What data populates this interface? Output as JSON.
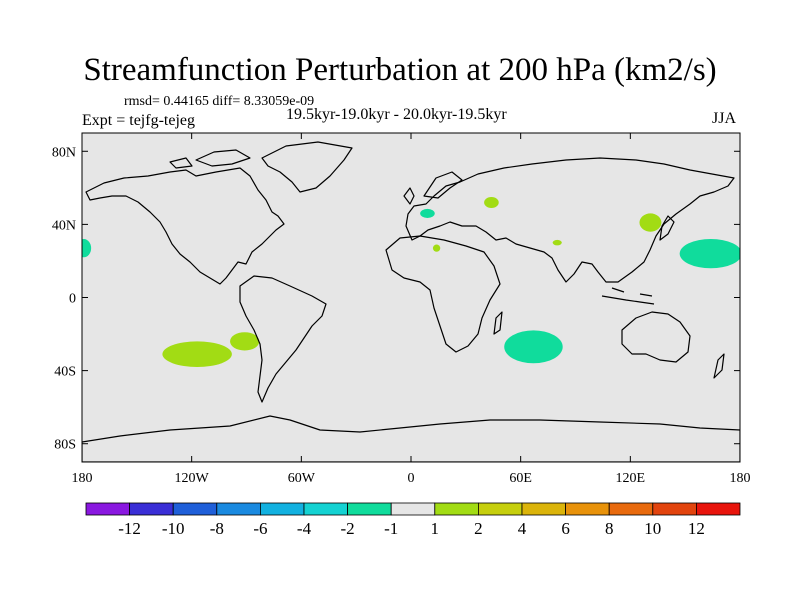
{
  "chart_data": {
    "type": "heatmap",
    "title": "Streamfunction Perturbation at 200 hPa (km2/s)",
    "stats_text": "rmsd= 0.44165 diff= 8.33059e-09",
    "subtitle": "19.5kyr-19.0kyr - 20.0kyr-19.5kyr",
    "left_label": "Expt = tejfg-tejeg",
    "right_label": "JJA",
    "projection": "cylindrical-equidistant",
    "xlim": [
      -180,
      180
    ],
    "ylim": [
      -90,
      90
    ],
    "x_ticks": [
      {
        "value": -180,
        "label": "180"
      },
      {
        "value": -120,
        "label": "120W"
      },
      {
        "value": -60,
        "label": "60W"
      },
      {
        "value": 0,
        "label": "0"
      },
      {
        "value": 60,
        "label": "60E"
      },
      {
        "value": 120,
        "label": "120E"
      },
      {
        "value": 180,
        "label": "180"
      }
    ],
    "y_ticks": [
      {
        "value": 80,
        "label": "80N"
      },
      {
        "value": 40,
        "label": "40N"
      },
      {
        "value": 0,
        "label": "0"
      },
      {
        "value": -40,
        "label": "40S"
      },
      {
        "value": -80,
        "label": "80S"
      }
    ],
    "background_color": "#e6e6e6",
    "colorbar": {
      "colors": [
        "#8a18e0",
        "#3a2ed6",
        "#1f5fd9",
        "#1a8ae0",
        "#12b1e0",
        "#14d2d2",
        "#10dc9c",
        "#e6e6e6",
        "#a2dc14",
        "#c6cf0e",
        "#dbb40a",
        "#e8920a",
        "#e86a0e",
        "#e2440e",
        "#e8140c"
      ],
      "labels": [
        "-12",
        "-10",
        "-8",
        "-6",
        "-4",
        "-2",
        "-1",
        "1",
        "2",
        "4",
        "6",
        "8",
        "10",
        "12"
      ]
    },
    "anomaly_regions": [
      {
        "name": "east-pacific-dateline",
        "lon": -179,
        "lat": 27,
        "rlon": 4,
        "rlat": 5,
        "level": "-2",
        "color": "#10dc9c"
      },
      {
        "name": "south-pacific-west",
        "lon": -117,
        "lat": -31,
        "rlon": 19,
        "rlat": 7,
        "level": "2",
        "color": "#a2dc14"
      },
      {
        "name": "south-pacific-east",
        "lon": -91,
        "lat": -24,
        "rlon": 8,
        "rlat": 5,
        "level": "2",
        "color": "#a2dc14"
      },
      {
        "name": "europe",
        "lon": 9,
        "lat": 46,
        "rlon": 4,
        "rlat": 2.5,
        "level": "-2",
        "color": "#10dc9c"
      },
      {
        "name": "caspian",
        "lon": 44,
        "lat": 52,
        "rlon": 4,
        "rlat": 3,
        "level": "2",
        "color": "#a2dc14"
      },
      {
        "name": "north-africa",
        "lon": 14,
        "lat": 27,
        "rlon": 2,
        "rlat": 2,
        "level": "2",
        "color": "#a2dc14"
      },
      {
        "name": "arabia",
        "lon": 80,
        "lat": 30,
        "rlon": 2.5,
        "rlat": 1.5,
        "level": "2",
        "color": "#a2dc14"
      },
      {
        "name": "east-asia",
        "lon": 131,
        "lat": 41,
        "rlon": 6,
        "rlat": 5,
        "level": "2",
        "color": "#a2dc14"
      },
      {
        "name": "north-pacific",
        "lon": 164,
        "lat": 24,
        "rlon": 17,
        "rlat": 8,
        "level": "-2",
        "color": "#10dc9c"
      },
      {
        "name": "south-indian-ocean",
        "lon": 67,
        "lat": -27,
        "rlon": 16,
        "rlat": 9,
        "level": "-2",
        "color": "#10dc9c"
      }
    ]
  }
}
